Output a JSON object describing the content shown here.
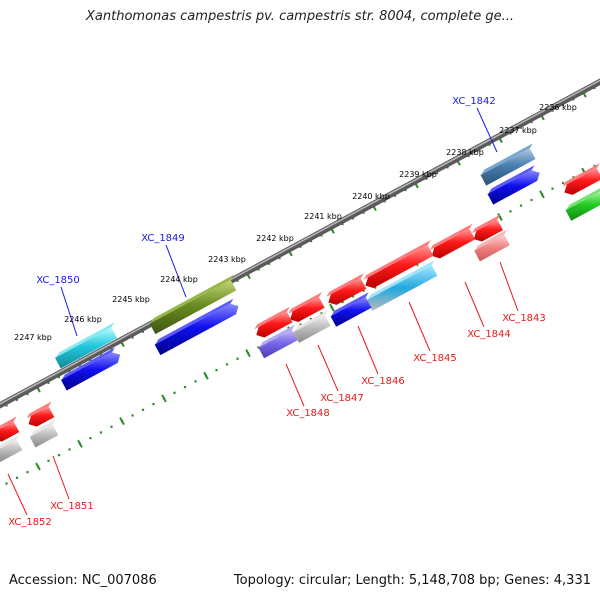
{
  "title": "Xanthomonas campestris pv. campestris str. 8004, complete ge...",
  "footer": {
    "accession": "Accession: NC_007086",
    "stats": "Topology: circular; Length: 5,148,708 bp; Genes: 4,331"
  },
  "colors": {
    "background": "#ffffff",
    "backbone": "#777777",
    "ruler": "#2e8b2e",
    "forward_label": "#1a1ae6",
    "reverse_label": "#e61a1a"
  },
  "ruler_ticks": [
    "2236 kbp",
    "2237 kbp",
    "2238 kbp",
    "2239 kbp",
    "2240 kbp",
    "2241 kbp",
    "2242 kbp",
    "2243 kbp",
    "2244 kbp",
    "2245 kbp",
    "2246 kbp",
    "2247 kbp"
  ],
  "gene_labels": [
    {
      "text": "XC_1842",
      "strand": "forward"
    },
    {
      "text": "XC_1849",
      "strand": "forward"
    },
    {
      "text": "XC_1850",
      "strand": "forward"
    },
    {
      "text": "XC_1843",
      "strand": "reverse"
    },
    {
      "text": "XC_1844",
      "strand": "reverse"
    },
    {
      "text": "XC_1845",
      "strand": "reverse"
    },
    {
      "text": "XC_1846",
      "strand": "reverse"
    },
    {
      "text": "XC_1847",
      "strand": "reverse"
    },
    {
      "text": "XC_1848",
      "strand": "reverse"
    },
    {
      "text": "XC_1851",
      "strand": "reverse"
    },
    {
      "text": "XC_1852",
      "strand": "reverse"
    }
  ]
}
